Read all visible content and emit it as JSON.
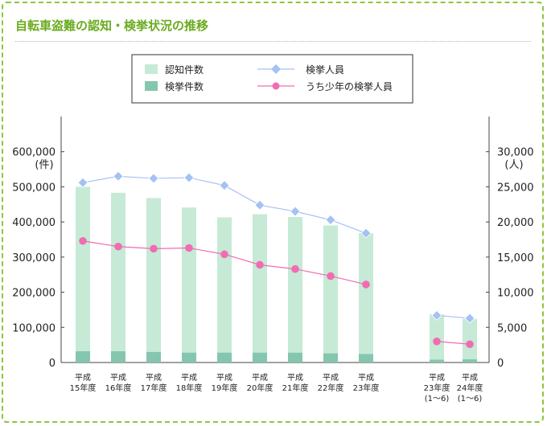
{
  "page": {
    "title": "自転車盗難の認知・検挙状況の推移"
  },
  "chart_data": {
    "type": "bar",
    "categories": [
      [
        "平成",
        "15年度"
      ],
      [
        "平成",
        "16年度"
      ],
      [
        "平成",
        "17年度"
      ],
      [
        "平成",
        "18年度"
      ],
      [
        "平成",
        "19年度"
      ],
      [
        "平成",
        "20年度"
      ],
      [
        "平成",
        "21年度"
      ],
      [
        "平成",
        "22年度"
      ],
      [
        "平成",
        "23年度"
      ],
      [
        "平成",
        "23年度",
        "(1〜6)"
      ],
      [
        "平成",
        "24年度",
        "(1〜6)"
      ]
    ],
    "series": [
      {
        "name": "認知件数",
        "kind": "bar",
        "axis": "left",
        "color": "#c6ead6",
        "values": [
          500000,
          483000,
          468000,
          441000,
          413000,
          422000,
          414000,
          390000,
          368000,
          137000,
          124000
        ]
      },
      {
        "name": "検挙件数",
        "kind": "bar",
        "axis": "left",
        "color": "#84c6ae",
        "values": [
          32000,
          32000,
          30000,
          28000,
          28000,
          28000,
          28000,
          26000,
          24000,
          8000,
          9000
        ]
      },
      {
        "name": "検挙人員",
        "kind": "line",
        "axis": "right",
        "color": "#a4c2f2",
        "marker": "diamond",
        "values": [
          25600,
          26500,
          26200,
          26300,
          25200,
          22400,
          21500,
          20300,
          18400,
          6700,
          6300
        ]
      },
      {
        "name": "うち少年の検挙人員",
        "kind": "line",
        "axis": "right",
        "color": "#f26cb1",
        "marker": "circle",
        "values": [
          17300,
          16500,
          16200,
          16300,
          15400,
          13900,
          13300,
          12300,
          11100,
          3000,
          2600
        ]
      }
    ],
    "left_axis": {
      "unit": "(件)",
      "ticks": [
        "0",
        "100,000",
        "200,000",
        "300,000",
        "400,000",
        "500,000",
        "600,000"
      ],
      "ylim": [
        0,
        700000
      ]
    },
    "right_axis": {
      "unit": "(人)",
      "ticks": [
        "0",
        "5,000",
        "10,000",
        "15,000",
        "20,000",
        "25,000",
        "30,000"
      ],
      "ylim": [
        0,
        35000
      ]
    },
    "legend": {
      "placement": "top-center"
    },
    "grid": false
  }
}
